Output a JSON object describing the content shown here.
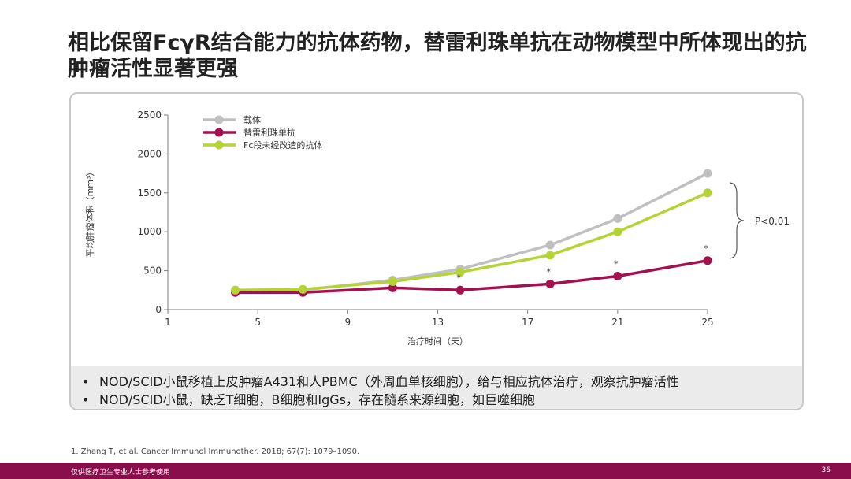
{
  "slide": {
    "title": "相比保留FcγR结合能力的抗体药物，替雷利珠单抗在动物模型中所体现出的抗肿瘤活性显著更强",
    "bullets": [
      "NOD/SCID小鼠移植上皮肿瘤A431和人PBMC（外周血单核细胞），给与相应抗体治疗，观察抗肿瘤活性",
      "NOD/SCID小鼠，缺乏T细胞，B细胞和IgGs，存在髓系来源细胞，如巨噬细胞"
    ],
    "bullet_symbol": "•",
    "reference": "1.   Zhang T, et al. Cancer Immunol Immunother. 2018; 67(7): 1079–1090.",
    "footer_text": "仅供医疗卫生专业人士参考使用",
    "page_number": "36",
    "colors": {
      "footer_bg": "#8a0e4b"
    }
  },
  "chart_data": {
    "type": "line",
    "xlabel": "治疗时间（天）",
    "ylabel": "平均肿瘤体积（mm³）",
    "xlim": [
      1,
      25
    ],
    "ylim": [
      0,
      2500
    ],
    "x_ticks": [
      1,
      5,
      9,
      13,
      17,
      21,
      25
    ],
    "y_ticks": [
      0,
      500,
      1000,
      1500,
      2000,
      2500
    ],
    "x": [
      4,
      7,
      11,
      14,
      18,
      21,
      25
    ],
    "series": [
      {
        "name": "载体",
        "color": "#c0c0c0",
        "values": [
          250,
          250,
          380,
          520,
          830,
          1170,
          1750
        ]
      },
      {
        "name": "替雷利珠单抗",
        "color": "#a3124f",
        "values": [
          220,
          220,
          280,
          250,
          330,
          430,
          630
        ]
      },
      {
        "name": "Fc段未经改造的抗体",
        "color": "#b4d335",
        "values": [
          250,
          260,
          360,
          480,
          700,
          1000,
          1500
        ]
      }
    ],
    "significance_marks": [
      {
        "x": 14,
        "label": "*"
      },
      {
        "x": 18,
        "label": "*"
      },
      {
        "x": 21,
        "label": "*"
      },
      {
        "x": 25,
        "label": "*"
      }
    ],
    "annotation": "P<0.01",
    "legend_position": "top-left",
    "grid": false
  }
}
